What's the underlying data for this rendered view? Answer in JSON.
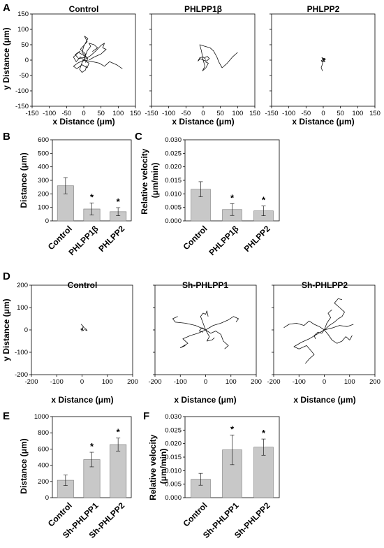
{
  "chart_data": [
    {
      "panel": "A",
      "type": "line",
      "title": "Control",
      "xlabel": "x Distance (μm)",
      "ylabel": "y Distance (μm)",
      "xlim": [
        -150,
        150
      ],
      "ylim": [
        -150,
        150
      ],
      "xticks": [
        -150,
        -100,
        -50,
        0,
        50,
        100,
        150
      ],
      "yticks": [
        -150,
        -100,
        -50,
        0,
        50,
        100,
        150
      ],
      "tracks": [
        [
          [
            0,
            0
          ],
          [
            5,
            20
          ],
          [
            -10,
            35
          ],
          [
            10,
            60
          ],
          [
            2,
            78
          ],
          [
            12,
            70
          ],
          [
            0,
            45
          ],
          [
            -5,
            25
          ],
          [
            8,
            10
          ],
          [
            -15,
            5
          ],
          [
            -25,
            18
          ],
          [
            -10,
            30
          ]
        ],
        [
          [
            0,
            0
          ],
          [
            20,
            15
          ],
          [
            35,
            30
          ],
          [
            50,
            48
          ],
          [
            60,
            55
          ],
          [
            55,
            40
          ],
          [
            65,
            35
          ],
          [
            50,
            20
          ],
          [
            30,
            10
          ],
          [
            15,
            0
          ]
        ],
        [
          [
            0,
            0
          ],
          [
            -18,
            -10
          ],
          [
            -30,
            -20
          ],
          [
            -20,
            -28
          ],
          [
            -5,
            -15
          ],
          [
            10,
            -25
          ],
          [
            15,
            -10
          ],
          [
            0,
            0
          ]
        ],
        [
          [
            0,
            0
          ],
          [
            25,
            -5
          ],
          [
            45,
            -10
          ],
          [
            60,
            -20
          ],
          [
            75,
            -5
          ],
          [
            95,
            -15
          ],
          [
            112,
            -28
          ]
        ],
        [
          [
            0,
            0
          ],
          [
            -10,
            10
          ],
          [
            -22,
            -5
          ],
          [
            -30,
            10
          ],
          [
            -15,
            25
          ],
          [
            0,
            15
          ],
          [
            12,
            5
          ],
          [
            5,
            -8
          ]
        ],
        [
          [
            0,
            0
          ],
          [
            10,
            30
          ],
          [
            20,
            45
          ],
          [
            15,
            55
          ],
          [
            30,
            50
          ],
          [
            40,
            40
          ],
          [
            25,
            28
          ]
        ],
        [
          [
            0,
            0
          ],
          [
            -5,
            -8
          ],
          [
            -12,
            -30
          ],
          [
            -5,
            -40
          ],
          [
            5,
            -32
          ],
          [
            8,
            -18
          ]
        ]
      ]
    },
    {
      "panel": "A",
      "type": "line",
      "title": "PHLPP1β",
      "xlabel": "x Distance (μm)",
      "ylabel": "",
      "xlim": [
        -150,
        150
      ],
      "ylim": [
        -150,
        150
      ],
      "xticks": [
        -150,
        -100,
        -50,
        0,
        50,
        100,
        150
      ],
      "yticks": [
        -150,
        -100,
        -50,
        0,
        50,
        100,
        150
      ],
      "tracks": [
        [
          [
            0,
            0
          ],
          [
            -5,
            30
          ],
          [
            -10,
            50
          ],
          [
            5,
            45
          ],
          [
            20,
            40
          ],
          [
            30,
            30
          ],
          [
            40,
            10
          ],
          [
            45,
            -5
          ],
          [
            55,
            -25
          ],
          [
            70,
            -10
          ],
          [
            85,
            10
          ],
          [
            100,
            25
          ]
        ],
        [
          [
            0,
            0
          ],
          [
            5,
            -20
          ],
          [
            -2,
            -35
          ],
          [
            8,
            -25
          ],
          [
            15,
            -10
          ],
          [
            5,
            -5
          ]
        ],
        [
          [
            0,
            0
          ],
          [
            -8,
            5
          ],
          [
            -15,
            -3
          ],
          [
            -10,
            8
          ],
          [
            0,
            10
          ],
          [
            8,
            2
          ]
        ],
        [
          [
            0,
            0
          ],
          [
            10,
            -3
          ],
          [
            18,
            5
          ],
          [
            12,
            12
          ],
          [
            4,
            8
          ]
        ]
      ]
    },
    {
      "panel": "A",
      "type": "line",
      "title": "PHLPP2",
      "xlabel": "x Distance (μm)",
      "ylabel": "",
      "xlim": [
        -150,
        150
      ],
      "ylim": [
        -150,
        150
      ],
      "xticks": [
        -150,
        -100,
        -50,
        0,
        50,
        100,
        150
      ],
      "yticks": [
        -150,
        -100,
        -50,
        0,
        50,
        100,
        150
      ],
      "tracks": [
        [
          [
            0,
            0
          ],
          [
            -3,
            -15
          ],
          [
            -6,
            -25
          ],
          [
            -2,
            -35
          ]
        ],
        [
          [
            0,
            0
          ],
          [
            6,
            4
          ],
          [
            -4,
            8
          ],
          [
            5,
            -5
          ],
          [
            -6,
            -2
          ],
          [
            4,
            6
          ],
          [
            0,
            0
          ]
        ],
        [
          [
            0,
            0
          ],
          [
            3,
            -4
          ],
          [
            -2,
            5
          ],
          [
            6,
            2
          ],
          [
            -5,
            -6
          ]
        ]
      ]
    },
    {
      "panel": "B",
      "type": "bar",
      "categories": [
        "Control",
        "PHLPP1β",
        "PHLPP2"
      ],
      "values": [
        260,
        88,
        68
      ],
      "errors": [
        60,
        45,
        30
      ],
      "significance": [
        "",
        "*",
        "*"
      ],
      "ylabel": "Distance (μm)",
      "ylim": [
        0,
        600
      ],
      "yticks": [
        0,
        100,
        200,
        300,
        400,
        500,
        600
      ]
    },
    {
      "panel": "C",
      "type": "bar",
      "categories": [
        "Control",
        "PHLPP1β",
        "PHLPP2"
      ],
      "values": [
        0.0117,
        0.0042,
        0.0037
      ],
      "errors": [
        0.0028,
        0.0022,
        0.0018
      ],
      "significance": [
        "",
        "*",
        "*"
      ],
      "ylabel": "Relative velocity (μm/min)",
      "ylim": [
        0,
        0.03
      ],
      "yticks": [
        "0.000",
        "0.005",
        "0.010",
        "0.015",
        "0.020",
        "0.025",
        "0.030"
      ]
    },
    {
      "panel": "D",
      "type": "line",
      "title": "Control",
      "xlabel": "x Distance (μm)",
      "ylabel": "y Distance (μm)",
      "xlim": [
        -200,
        200
      ],
      "ylim": [
        -200,
        200
      ],
      "xticks": [
        -200,
        -100,
        0,
        100,
        200
      ],
      "yticks": [
        -200,
        -100,
        0,
        100,
        200
      ],
      "tracks": [
        [
          [
            0,
            0
          ],
          [
            5,
            15
          ],
          [
            -3,
            25
          ],
          [
            8,
            10
          ],
          [
            15,
            5
          ],
          [
            20,
            -3
          ],
          [
            10,
            2
          ]
        ],
        [
          [
            0,
            0
          ],
          [
            -5,
            3
          ],
          [
            3,
            8
          ],
          [
            -2,
            -4
          ],
          [
            6,
            -2
          ],
          [
            0,
            4
          ]
        ]
      ]
    },
    {
      "panel": "D",
      "type": "line",
      "title": "Sh-PHLPP1",
      "xlabel": "x Distance (μm)",
      "ylabel": "",
      "xlim": [
        -200,
        200
      ],
      "ylim": [
        -200,
        200
      ],
      "xticks": [
        -200,
        -100,
        0,
        100,
        200
      ],
      "yticks": [
        -200,
        -100,
        0,
        100,
        200
      ],
      "tracks": [
        [
          [
            0,
            0
          ],
          [
            -10,
            30
          ],
          [
            -20,
            60
          ],
          [
            -10,
            75
          ],
          [
            0,
            70
          ],
          [
            5,
            85
          ],
          [
            10,
            60
          ]
        ],
        [
          [
            0,
            0
          ],
          [
            -40,
            20
          ],
          [
            -80,
            30
          ],
          [
            -120,
            35
          ],
          [
            -130,
            50
          ],
          [
            -110,
            60
          ]
        ],
        [
          [
            0,
            0
          ],
          [
            -30,
            -15
          ],
          [
            -60,
            -25
          ],
          [
            -90,
            -40
          ],
          [
            -70,
            -60
          ],
          [
            -100,
            -80
          ],
          [
            -80,
            -70
          ]
        ],
        [
          [
            0,
            0
          ],
          [
            20,
            -15
          ],
          [
            40,
            -5
          ],
          [
            60,
            -20
          ],
          [
            70,
            -50
          ],
          [
            90,
            -70
          ],
          [
            75,
            -85
          ]
        ],
        [
          [
            0,
            0
          ],
          [
            30,
            20
          ],
          [
            60,
            30
          ],
          [
            90,
            45
          ],
          [
            110,
            60
          ],
          [
            130,
            50
          ],
          [
            120,
            35
          ]
        ],
        [
          [
            0,
            0
          ],
          [
            15,
            -30
          ],
          [
            5,
            -50
          ],
          [
            25,
            -45
          ],
          [
            35,
            -35
          ]
        ],
        [
          [
            0,
            0
          ],
          [
            -15,
            10
          ],
          [
            -25,
            -5
          ],
          [
            -10,
            -10
          ]
        ]
      ]
    },
    {
      "panel": "D",
      "type": "line",
      "title": "Sh-PHLPP2",
      "xlabel": "x Distance (μm)",
      "ylabel": "",
      "xlim": [
        -200,
        200
      ],
      "ylim": [
        -200,
        200
      ],
      "xticks": [
        -200,
        -100,
        0,
        100,
        200
      ],
      "yticks": [
        -200,
        -100,
        0,
        100,
        200
      ],
      "tracks": [
        [
          [
            0,
            0
          ],
          [
            -30,
            -20
          ],
          [
            -60,
            -40
          ],
          [
            -90,
            -55
          ],
          [
            -120,
            -75
          ],
          [
            -100,
            -85
          ],
          [
            -70,
            -70
          ],
          [
            -55,
            -90
          ],
          [
            -40,
            -110
          ],
          [
            -60,
            -130
          ],
          [
            -75,
            -150
          ]
        ],
        [
          [
            0,
            0
          ],
          [
            20,
            20
          ],
          [
            40,
            35
          ],
          [
            55,
            50
          ],
          [
            70,
            60
          ],
          [
            80,
            80
          ],
          [
            60,
            100
          ],
          [
            40,
            120
          ],
          [
            55,
            140
          ],
          [
            70,
            135
          ]
        ],
        [
          [
            0,
            0
          ],
          [
            -20,
            15
          ],
          [
            -40,
            25
          ],
          [
            -60,
            40
          ],
          [
            -80,
            20
          ],
          [
            -110,
            30
          ],
          [
            -140,
            25
          ],
          [
            -160,
            10
          ]
        ],
        [
          [
            0,
            0
          ],
          [
            15,
            -20
          ],
          [
            30,
            -45
          ],
          [
            50,
            -60
          ],
          [
            70,
            -50
          ],
          [
            85,
            -30
          ],
          [
            100,
            -45
          ],
          [
            110,
            -25
          ]
        ],
        [
          [
            0,
            0
          ],
          [
            10,
            30
          ],
          [
            25,
            55
          ],
          [
            15,
            75
          ],
          [
            30,
            90
          ]
        ],
        [
          [
            0,
            0
          ],
          [
            -10,
            -15
          ],
          [
            -25,
            -10
          ],
          [
            -40,
            -25
          ],
          [
            -35,
            -40
          ]
        ],
        [
          [
            0,
            0
          ],
          [
            35,
            10
          ],
          [
            60,
            20
          ],
          [
            90,
            15
          ],
          [
            115,
            25
          ]
        ]
      ]
    },
    {
      "panel": "E",
      "type": "bar",
      "categories": [
        "Control",
        "Sh-PHLPP1",
        "Sh-PHLPP2"
      ],
      "values": [
        215,
        470,
        655
      ],
      "errors": [
        65,
        90,
        80
      ],
      "significance": [
        "",
        "*",
        "*"
      ],
      "ylabel": "Distance (μm)",
      "ylim": [
        0,
        1000
      ],
      "yticks": [
        0,
        200,
        400,
        600,
        800,
        1000
      ]
    },
    {
      "panel": "F",
      "type": "bar",
      "categories": [
        "Control",
        "Sh-PHLPP1",
        "Sh-PHLPP2"
      ],
      "values": [
        0.0068,
        0.0177,
        0.0187
      ],
      "errors": [
        0.0022,
        0.0055,
        0.003
      ],
      "significance": [
        "",
        "*",
        "*"
      ],
      "ylabel": "Relative velocity (μm/min)",
      "ylim": [
        0,
        0.03
      ],
      "yticks": [
        "0.000",
        "0.005",
        "0.010",
        "0.015",
        "0.020",
        "0.025",
        "0.030"
      ]
    }
  ]
}
